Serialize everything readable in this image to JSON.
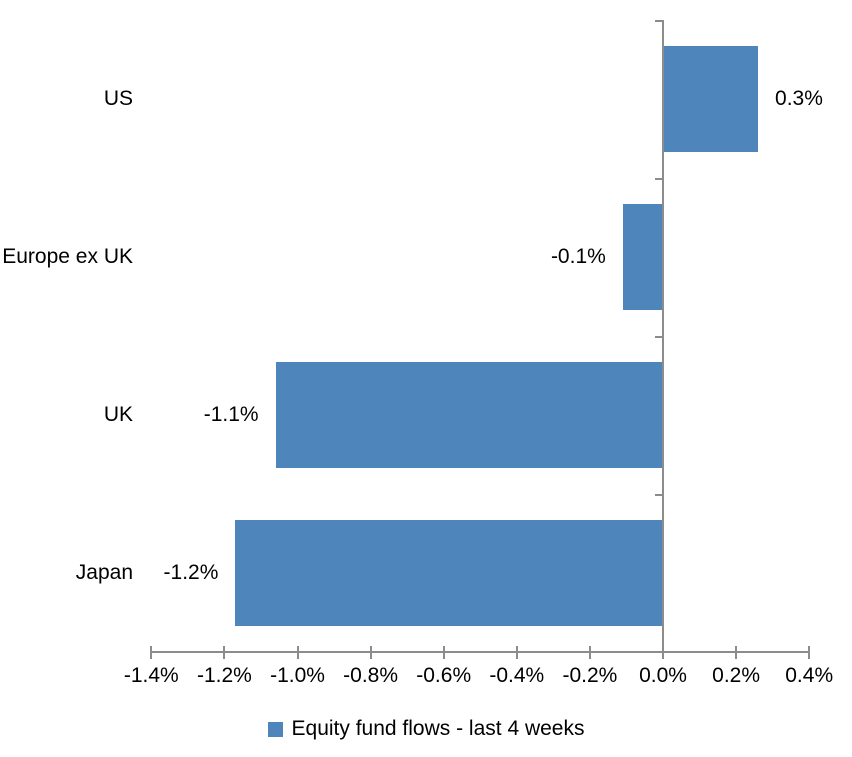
{
  "chart_data": {
    "type": "bar",
    "orientation": "horizontal",
    "title": "",
    "categories": [
      "US",
      "Europe ex UK",
      "UK",
      "Japan"
    ],
    "values": [
      0.3,
      -0.1,
      -1.1,
      -1.2
    ],
    "data_labels": [
      "0.3%",
      "-0.1%",
      "-1.1%",
      "-1.2%"
    ],
    "values_render": [
      0.26,
      -0.11,
      -1.06,
      -1.17
    ],
    "x_ticks": [
      {
        "label": "-1.4%",
        "value": -1.4
      },
      {
        "label": "-1.2%",
        "value": -1.2
      },
      {
        "label": "-1.0%",
        "value": -1.0
      },
      {
        "label": "-0.8%",
        "value": -0.8
      },
      {
        "label": "-0.6%",
        "value": -0.6
      },
      {
        "label": "-0.4%",
        "value": -0.4
      },
      {
        "label": "-0.2%",
        "value": -0.2
      },
      {
        "label": "0.0%",
        "value": 0.0
      },
      {
        "label": "0.2%",
        "value": 0.2
      },
      {
        "label": "0.4%",
        "value": 0.4
      }
    ],
    "xlim": [
      -1.4,
      0.4
    ],
    "grid": false,
    "legend_position": "bottom",
    "legend_label": "Equity fund flows - last 4 weeks",
    "colors": {
      "bar": "#4E86BC",
      "axis": "#8C8C8C",
      "text": "#000000",
      "background": "#FFFFFF"
    }
  }
}
